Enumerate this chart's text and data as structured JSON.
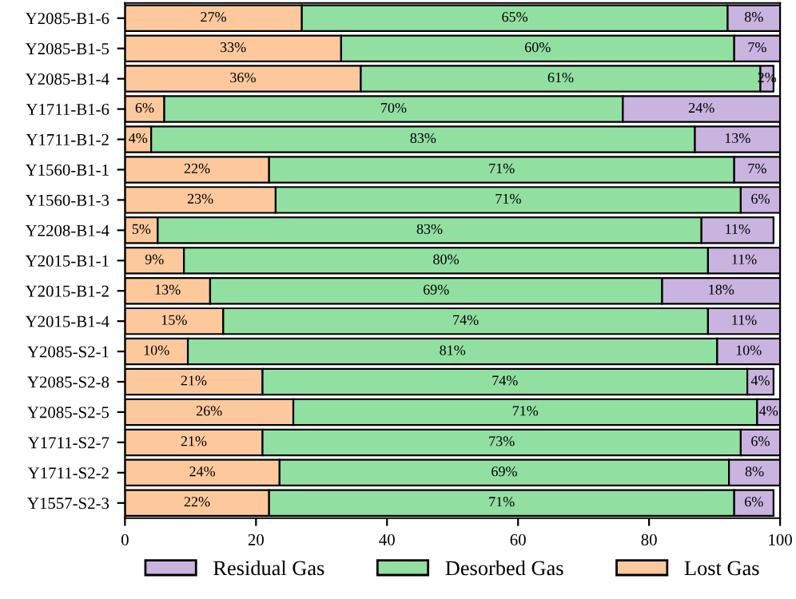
{
  "chart_data": {
    "type": "bar",
    "orientation": "horizontal",
    "stacked": true,
    "categories": [
      "Y2085-B1-6",
      "Y2085-B1-5",
      "Y2085-B1-4",
      "Y1711-B1-6",
      "Y1711-B1-2",
      "Y1560-B1-1",
      "Y1560-B1-3",
      "Y2208-B1-4",
      "Y2015-B1-1",
      "Y2015-B1-2",
      "Y2015-B1-4",
      "Y2085-S2-1",
      "Y2085-S2-8",
      "Y2085-S2-5",
      "Y1711-S2-7",
      "Y1711-S2-2",
      "Y1557-S2-3"
    ],
    "series": [
      {
        "name": "Lost Gas",
        "color": "#fdc99c",
        "values": [
          27,
          33,
          36,
          6,
          4,
          22,
          23,
          5,
          9,
          13,
          15,
          9.6,
          21,
          25.7,
          21,
          23.6,
          22
        ],
        "value_labels": [
          "27%",
          "33%",
          "36%",
          "6%",
          "4%",
          "22%",
          "23%",
          "5%",
          "9%",
          "13%",
          "15%",
          "10%",
          "21%",
          "26%",
          "21%",
          "24%",
          "22%"
        ]
      },
      {
        "name": "Desorbed Gas",
        "color": "#92dfa2",
        "values": [
          65,
          60,
          61,
          70,
          83,
          71,
          71,
          83,
          80,
          69,
          74,
          80.8,
          74,
          70.8,
          73,
          68.6,
          71
        ],
        "value_labels": [
          "65%",
          "60%",
          "61%",
          "70%",
          "83%",
          "71%",
          "71%",
          "83%",
          "80%",
          "69%",
          "74%",
          "81%",
          "74%",
          "71%",
          "73%",
          "69%",
          "71%"
        ]
      },
      {
        "name": "Residual Gas",
        "color": "#c8b4df",
        "values": [
          8,
          7,
          2,
          24,
          13,
          7,
          6,
          11,
          11,
          18,
          11,
          9.6,
          4,
          3.5,
          6,
          7.8,
          6
        ],
        "value_labels": [
          "8%",
          "7%",
          "2%",
          "24%",
          "13%",
          "7%",
          "6%",
          "11%",
          "11%",
          "18%",
          "11%",
          "10%",
          "4%",
          "4%",
          "6%",
          "8%",
          "6%"
        ]
      }
    ],
    "xlim": [
      0,
      100
    ],
    "xticks": [
      0,
      20,
      40,
      60,
      80,
      100
    ],
    "legend": "bottom",
    "grid": false
  }
}
